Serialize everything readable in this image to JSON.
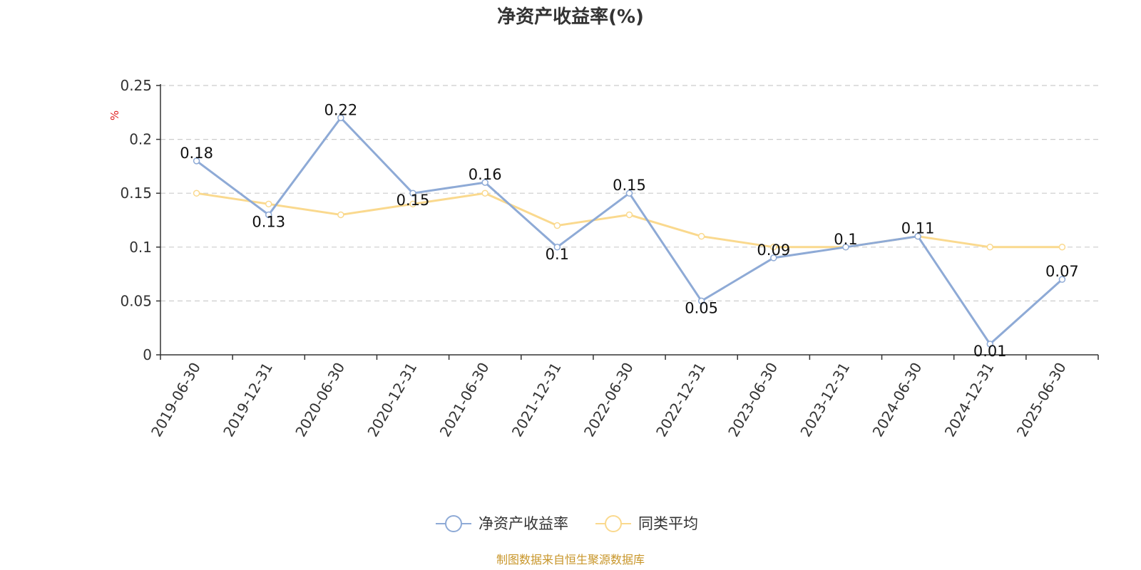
{
  "chart_data": {
    "type": "line",
    "title": "净资产收益率(%)",
    "y_unit": "%",
    "ylim": [
      0,
      0.25
    ],
    "yticks": [
      "0",
      "0.05",
      "0.1",
      "0.15",
      "0.2",
      "0.25"
    ],
    "grid": true,
    "categories": [
      "2019-06-30",
      "2019-12-31",
      "2020-06-30",
      "2020-12-31",
      "2021-06-30",
      "2021-12-31",
      "2022-06-30",
      "2022-12-31",
      "2023-06-30",
      "2023-12-31",
      "2024-06-30",
      "2024-12-31",
      "2025-06-30"
    ],
    "series": [
      {
        "name": "净资产收益率",
        "color": "#8eaad6",
        "values": [
          0.18,
          0.13,
          0.22,
          0.15,
          0.16,
          0.1,
          0.15,
          0.05,
          0.09,
          0.1,
          0.11,
          0.01,
          0.07
        ],
        "labels": [
          "0.18",
          "0.13",
          "0.22",
          "0.15",
          "0.16",
          "0.1",
          "0.15",
          "0.05",
          "0.09",
          "0.1",
          "0.11",
          "0.01",
          "0.07"
        ]
      },
      {
        "name": "同类平均",
        "color": "#fad98e",
        "values": [
          0.15,
          0.14,
          0.13,
          0.14,
          0.15,
          0.12,
          0.13,
          0.11,
          0.1,
          0.1,
          0.11,
          0.1,
          0.1
        ]
      }
    ],
    "legend_position": "bottom-center"
  },
  "colors": {
    "unit_label": "#e02020",
    "source_text": "#c8962a",
    "axis": "#333333",
    "grid": "#cccccc"
  },
  "source": "制图数据来自恒生聚源数据库"
}
